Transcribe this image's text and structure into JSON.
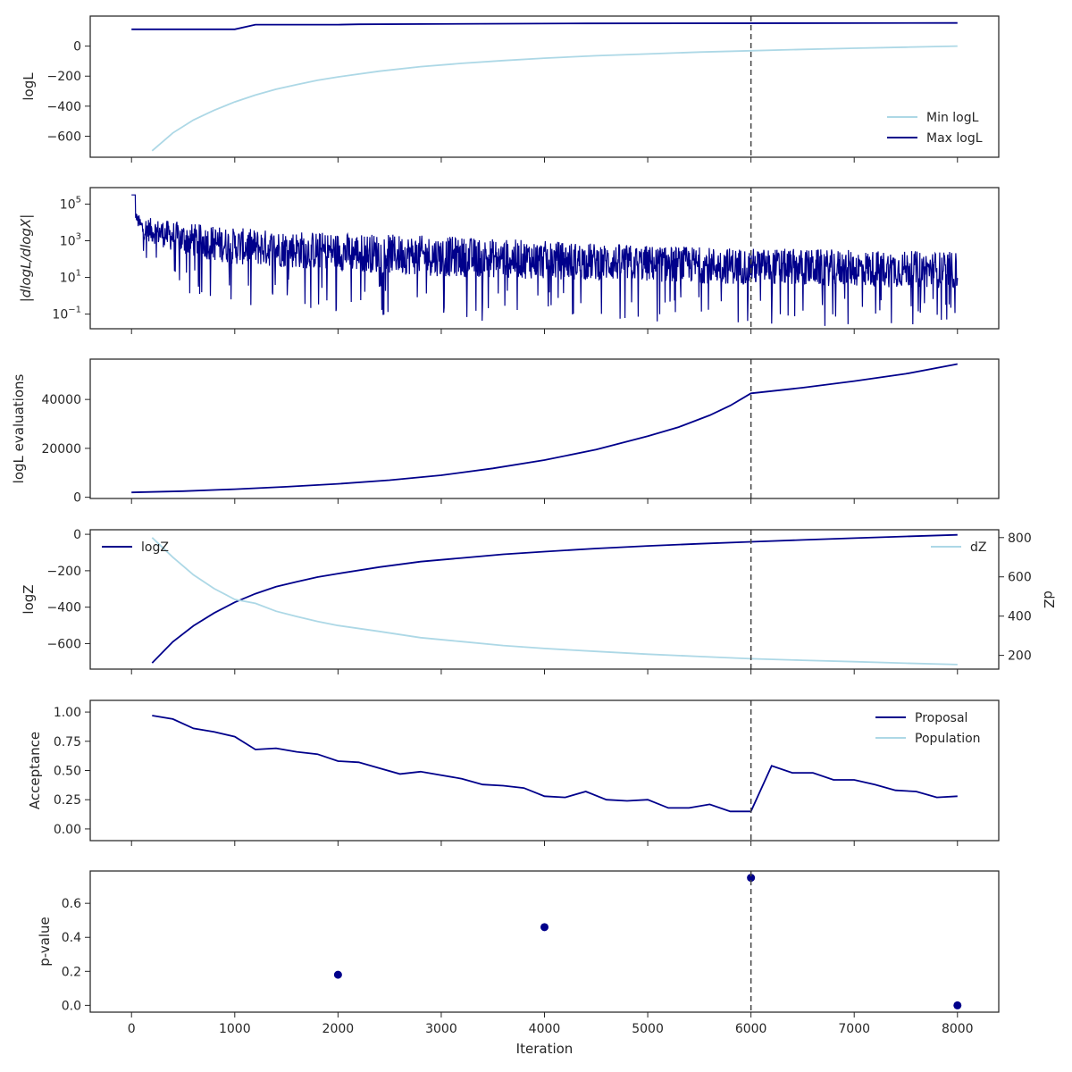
{
  "colors": {
    "dark": "#00008b",
    "light": "#add8e6",
    "vline": "#444444"
  },
  "chart_data": [
    {
      "type": "line",
      "panel": "logL",
      "ylabel": "logL",
      "xlim": [
        -400,
        8400
      ],
      "ylim": [
        -740,
        200
      ],
      "yticks": [
        0,
        -200,
        -400,
        -600
      ],
      "ytick_labels": [
        "0",
        "−200",
        "−400",
        "−600"
      ],
      "vline_x": 6000,
      "legend": "lower-right",
      "series": [
        {
          "name": "Min logL",
          "color": "light",
          "x": [
            200,
            400,
            600,
            800,
            1000,
            1200,
            1400,
            1600,
            1800,
            2000,
            2400,
            2800,
            3200,
            3600,
            4000,
            4500,
            5000,
            5500,
            6000,
            6500,
            7000,
            7500,
            8000
          ],
          "y": [
            -697,
            -578,
            -492,
            -427,
            -372,
            -326,
            -287,
            -257,
            -228,
            -205,
            -167,
            -137,
            -115,
            -96,
            -80,
            -64,
            -52,
            -40,
            -31,
            -22,
            -14,
            -7,
            0
          ]
        },
        {
          "name": "Max logL",
          "color": "dark",
          "x": [
            0,
            1000,
            1200,
            2000,
            2200,
            4400,
            8000
          ],
          "y": [
            112,
            112,
            143,
            143,
            145,
            151,
            154
          ]
        }
      ]
    },
    {
      "type": "line",
      "panel": "dlogL",
      "ylabel": "|dlogL/dlogX|",
      "yscale": "log",
      "xlim": [
        -400,
        8400
      ],
      "ylim_log10": [
        -1.8,
        5.9
      ],
      "yticks_log10": [
        5,
        3,
        1,
        -1
      ],
      "ytick_labels": [
        {
          "base": "10",
          "exp": "5"
        },
        {
          "base": "10",
          "exp": "3"
        },
        {
          "base": "10",
          "exp": "1"
        },
        {
          "base": "10",
          "exp": "−1"
        }
      ],
      "vline_x": 6000,
      "series": [
        {
          "name": "",
          "color": "dark",
          "x": [
            0,
            50,
            100,
            500,
            1000,
            2000,
            3000,
            4000,
            5000,
            6000,
            7000,
            8000
          ],
          "y_log10": [
            5.5,
            4.2,
            3.7,
            3.1,
            2.7,
            2.4,
            2.15,
            1.95,
            1.75,
            1.6,
            1.5,
            1.4
          ],
          "spread_log10": [
            0.3,
            0.6,
            1.2,
            1.8,
            2.0,
            2.1,
            2.2,
            2.1,
            2.0,
            2.0,
            2.0,
            2.0
          ]
        }
      ]
    },
    {
      "type": "line",
      "panel": "evaluations",
      "ylabel": "logL evaluations",
      "xlim": [
        -400,
        8400
      ],
      "ylim": [
        -500,
        56500
      ],
      "yticks": [
        40000,
        20000,
        0
      ],
      "ytick_labels": [
        "40000",
        "20000",
        "0"
      ],
      "vline_x": 6000,
      "series": [
        {
          "name": "",
          "color": "dark",
          "x": [
            0,
            500,
            1000,
            1500,
            2000,
            2500,
            3000,
            3500,
            4000,
            4500,
            5000,
            5300,
            5600,
            5800,
            6000,
            6500,
            7000,
            7500,
            8000
          ],
          "y": [
            2000,
            2500,
            3300,
            4300,
            5500,
            7000,
            9000,
            11800,
            15200,
            19500,
            25000,
            28700,
            33500,
            37500,
            42500,
            44800,
            47500,
            50500,
            54500
          ]
        }
      ]
    },
    {
      "type": "line",
      "panel": "logZ",
      "ylabel": "logZ",
      "ylabel_right": "dZ",
      "xlim": [
        -400,
        8400
      ],
      "ylim": [
        -740,
        25
      ],
      "yticks": [
        0,
        -200,
        -400,
        -600
      ],
      "ytick_labels": [
        "0",
        "−200",
        "−400",
        "−600"
      ],
      "ylim_right": [
        130,
        840
      ],
      "yticks_right": [
        800,
        600,
        400,
        200
      ],
      "ytick_labels_right": [
        "800",
        "600",
        "400",
        "200"
      ],
      "vline_x": 6000,
      "legend_left": "upper-left",
      "legend_right": "upper-right",
      "series": [
        {
          "name": "logZ",
          "color": "dark",
          "axis": "left",
          "x": [
            200,
            400,
            600,
            800,
            1000,
            1200,
            1400,
            1600,
            1800,
            2000,
            2400,
            2800,
            3200,
            3600,
            4000,
            4500,
            5000,
            5500,
            6000,
            6500,
            7000,
            7500,
            8000
          ],
          "y": [
            -706,
            -590,
            -502,
            -432,
            -373,
            -326,
            -288,
            -261,
            -235,
            -216,
            -180,
            -150,
            -130,
            -110,
            -95,
            -78,
            -64,
            -52,
            -41,
            -31,
            -21,
            -12,
            -3
          ]
        },
        {
          "name": "dZ",
          "color": "light",
          "axis": "right",
          "x": [
            200,
            400,
            600,
            800,
            1000,
            1200,
            1400,
            1600,
            1800,
            2000,
            2400,
            2800,
            3200,
            3600,
            4000,
            4500,
            5000,
            5500,
            6000,
            6500,
            7000,
            7500,
            8000
          ],
          "y": [
            800,
            700,
            610,
            540,
            485,
            465,
            425,
            398,
            373,
            352,
            322,
            290,
            270,
            250,
            235,
            220,
            206,
            194,
            183,
            175,
            168,
            160,
            153
          ]
        }
      ]
    },
    {
      "type": "line",
      "panel": "acceptance",
      "ylabel": "Acceptance",
      "xlim": [
        -400,
        8400
      ],
      "ylim": [
        -0.1,
        1.1
      ],
      "yticks": [
        1.0,
        0.75,
        0.5,
        0.25,
        0.0
      ],
      "ytick_labels": [
        "1.00",
        "0.75",
        "0.50",
        "0.25",
        "0.00"
      ],
      "vline_x": 6000,
      "legend": "upper-right",
      "series": [
        {
          "name": "Proposal",
          "color": "dark",
          "x": [
            200,
            400,
            600,
            800,
            1000,
            1200,
            1400,
            1600,
            1800,
            2000,
            2200,
            2400,
            2600,
            2800,
            3000,
            3200,
            3400,
            3600,
            3800,
            4000,
            4200,
            4400,
            4600,
            4800,
            5000,
            5200,
            5400,
            5600,
            5800,
            6000,
            6200,
            6400,
            6600,
            6800,
            7000,
            7200,
            7400,
            7600,
            7800,
            8000
          ],
          "y": [
            0.97,
            0.94,
            0.86,
            0.83,
            0.79,
            0.68,
            0.69,
            0.66,
            0.64,
            0.58,
            0.57,
            0.52,
            0.47,
            0.49,
            0.46,
            0.43,
            0.38,
            0.37,
            0.35,
            0.28,
            0.27,
            0.32,
            0.25,
            0.24,
            0.25,
            0.18,
            0.18,
            0.21,
            0.15,
            0.15,
            0.54,
            0.48,
            0.48,
            0.42,
            0.42,
            0.38,
            0.33,
            0.32,
            0.27,
            0.28
          ]
        },
        {
          "name": "Population",
          "color": "light",
          "x": [],
          "y": []
        }
      ]
    },
    {
      "type": "scatter",
      "panel": "pvalue",
      "ylabel": "p-value",
      "xlabel": "Iteration",
      "xlim": [
        -400,
        8400
      ],
      "ylim": [
        -0.04,
        0.79
      ],
      "yticks": [
        0.6,
        0.4,
        0.2,
        0.0
      ],
      "ytick_labels": [
        "0.6",
        "0.4",
        "0.2",
        "0.0"
      ],
      "xticks": [
        0,
        1000,
        2000,
        3000,
        4000,
        5000,
        6000,
        7000,
        8000
      ],
      "xtick_labels": [
        "0",
        "1000",
        "2000",
        "3000",
        "4000",
        "5000",
        "6000",
        "7000",
        "8000"
      ],
      "vline_x": 6000,
      "series": [
        {
          "name": "",
          "color": "dark",
          "x": [
            2000,
            4000,
            6000,
            8000
          ],
          "y": [
            0.18,
            0.46,
            0.75,
            0.0
          ]
        }
      ]
    }
  ]
}
